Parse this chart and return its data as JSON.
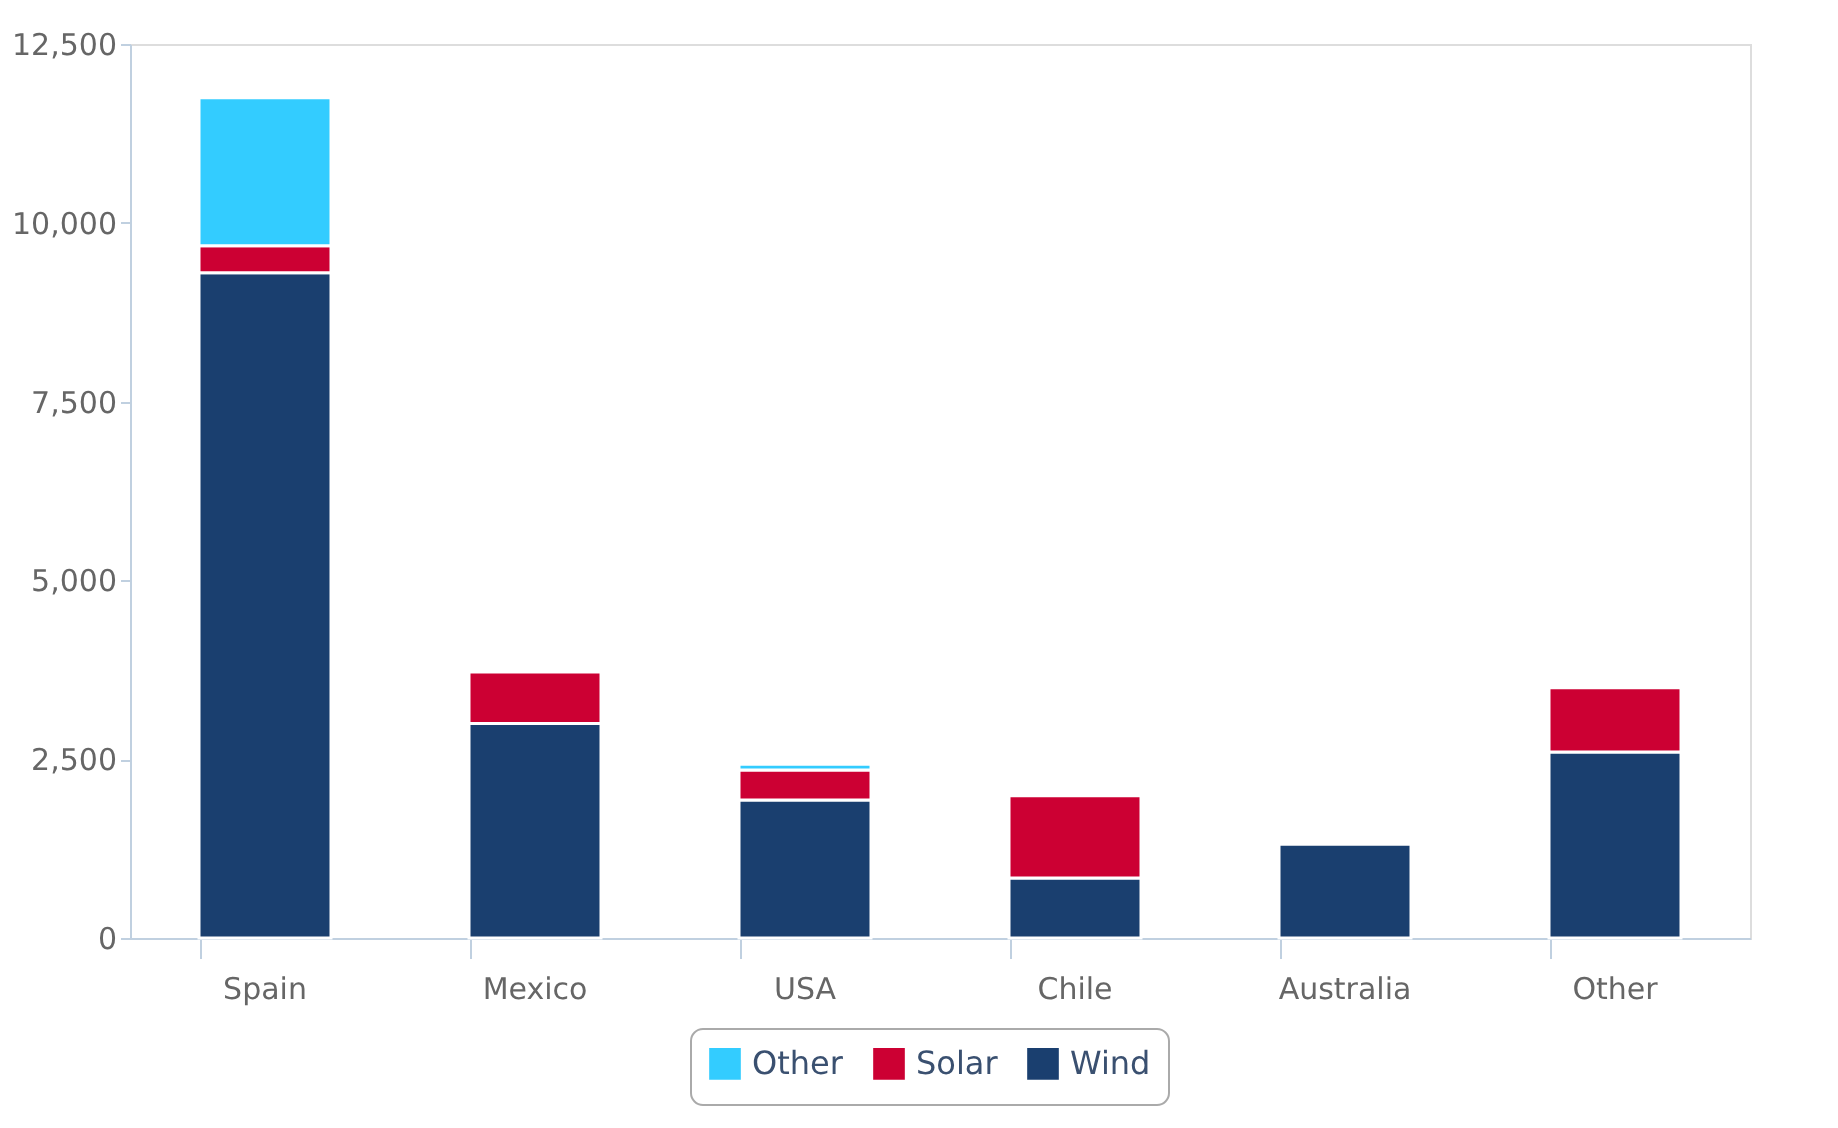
{
  "chart_data": {
    "type": "bar",
    "stacked": true,
    "categories": [
      "Spain",
      "Mexico",
      "USA",
      "Chile",
      "Australia",
      "Other"
    ],
    "series": [
      {
        "name": "Wind",
        "color": "#1a3f6f",
        "values": [
          9300,
          3000,
          1930,
          840,
          1310,
          2600
        ]
      },
      {
        "name": "Solar",
        "color": "#cc0033",
        "values": [
          380,
          720,
          420,
          1150,
          null,
          900
        ]
      },
      {
        "name": "Other",
        "color": "#33ccff",
        "values": [
          2070,
          null,
          80,
          null,
          null,
          null
        ]
      }
    ],
    "ylim": [
      0,
      12500
    ],
    "yticks": [
      0,
      {
        "value": 2500,
        "label": "2,500"
      },
      {
        "value": 5000,
        "label": "5,000"
      },
      {
        "value": 7500,
        "label": "7,500"
      },
      {
        "value": 10000,
        "label": "10,000"
      },
      {
        "value": 12500,
        "label": "12,500"
      }
    ],
    "grid": false,
    "legend": "bottom"
  }
}
